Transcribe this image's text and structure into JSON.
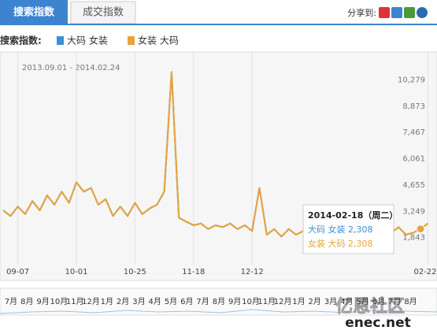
{
  "tabs": [
    "搜索指数",
    "成交指数"
  ],
  "share_label": "分享到:",
  "chart_data": {
    "type": "line",
    "title": "搜索指数:",
    "subtitle": "2013.09.01 - 2014.02.24",
    "categories": [
      null,
      null,
      "09-07",
      null,
      null,
      null,
      null,
      null,
      null,
      null,
      "10-01",
      null,
      null,
      null,
      null,
      null,
      null,
      null,
      "10-25",
      null,
      null,
      null,
      null,
      null,
      null,
      null,
      "11-18",
      null,
      null,
      null,
      null,
      null,
      null,
      null,
      "12-12",
      null,
      null,
      null,
      null,
      null,
      null,
      null,
      null,
      null,
      null,
      null,
      null,
      null,
      null,
      null,
      null,
      null,
      null,
      null,
      null,
      null,
      null,
      null,
      "02-22"
    ],
    "series": [
      {
        "name": "大码 女装",
        "color": "#3e8fd6",
        "values": [
          3300,
          3000,
          3500,
          3100,
          3800,
          3300,
          4100,
          3600,
          4300,
          3700,
          4800,
          4300,
          4500,
          3600,
          3900,
          3000,
          3500,
          3000,
          3700,
          3100,
          3400,
          3600,
          4300,
          10700,
          2900,
          2700,
          2500,
          2600,
          2300,
          2500,
          2400,
          2600,
          2300,
          2500,
          2200,
          4500,
          2000,
          2300,
          1900,
          2300,
          2000,
          2200,
          2100,
          2300,
          2000,
          2400,
          2100,
          2300,
          1900,
          2200,
          2400,
          2000,
          2300,
          2100,
          2400,
          2000,
          2100,
          2308,
          2600
        ]
      },
      {
        "name": "女装 大码",
        "color": "#e8a33a",
        "values": [
          3300,
          3000,
          3500,
          3100,
          3800,
          3300,
          4100,
          3600,
          4300,
          3700,
          4800,
          4300,
          4500,
          3600,
          3900,
          3000,
          3500,
          3000,
          3700,
          3100,
          3400,
          3600,
          4300,
          10700,
          2900,
          2700,
          2500,
          2600,
          2300,
          2500,
          2400,
          2600,
          2300,
          2500,
          2200,
          4500,
          2000,
          2300,
          1900,
          2300,
          2000,
          2200,
          2100,
          2300,
          2000,
          2400,
          2100,
          2300,
          1900,
          2200,
          2400,
          2000,
          2300,
          2100,
          2400,
          2000,
          2100,
          2308,
          2600
        ]
      }
    ],
    "ylim": [
      437,
      11685
    ],
    "yticks": [
      {
        "value": 1843,
        "label": "1,843"
      },
      {
        "value": 3249,
        "label": "3,249"
      },
      {
        "value": 4655,
        "label": "4,655"
      },
      {
        "value": 6061,
        "label": "6,061"
      },
      {
        "value": 7467,
        "label": "7,467"
      },
      {
        "value": 8873,
        "label": "8,873"
      },
      {
        "value": 10279,
        "label": "10,279"
      }
    ],
    "grid": false,
    "tooltip": {
      "date": "2014-02-18（周二）",
      "entries": [
        "大码 女装 2,308",
        "女装 大码 2,308"
      ]
    }
  },
  "overview_months": [
    "7月",
    "8月",
    "9月",
    "10月",
    "11月",
    "12月",
    "1月",
    "2月",
    "3月",
    "4月",
    "5月",
    "6月",
    "7月",
    "8月",
    "9月",
    "10月",
    "11月",
    "12月",
    "1月",
    "2月",
    "3月",
    "4月",
    "5月",
    "6月",
    "7月",
    "8月"
  ],
  "watermark": {
    "text": "亿恩社区",
    "url": "enec.net"
  }
}
